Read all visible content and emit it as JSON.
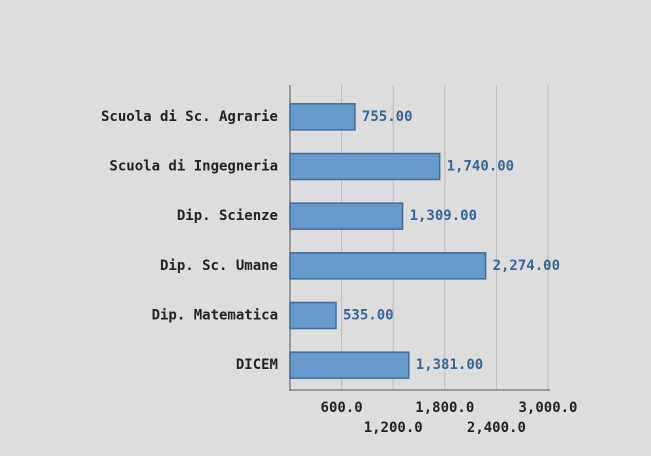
{
  "chart_data": {
    "type": "bar",
    "orientation": "horizontal",
    "categories": [
      "Scuola di Sc. Agrarie",
      "Scuola di Ingegneria",
      "Dip. Scienze",
      "Dip. Sc. Umane",
      "Dip. Matematica",
      "DICEM"
    ],
    "values": [
      755,
      1740,
      1309,
      2274,
      535,
      1381
    ],
    "value_labels": [
      "755.00",
      "1,740.00",
      "1,309.00",
      "2,274.00",
      "535.00",
      "1,381.00"
    ],
    "color": "#6699cc",
    "xlim": [
      0,
      3000
    ],
    "xticks": [
      {
        "value": 600,
        "label": "600.0"
      },
      {
        "value": 1200,
        "label": "1,200.0"
      },
      {
        "value": 1800,
        "label": "1,800.0"
      },
      {
        "value": 2400,
        "label": "2,400.0"
      },
      {
        "value": 3000,
        "label": "3,000.0"
      }
    ],
    "grid": true
  }
}
